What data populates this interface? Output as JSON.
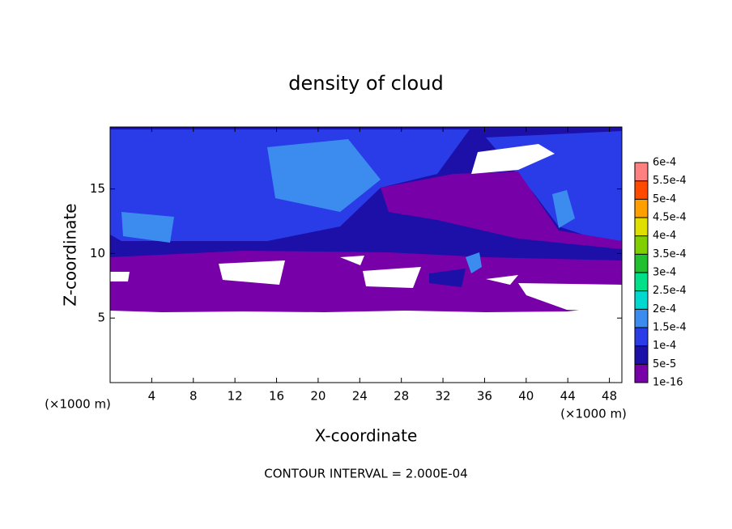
{
  "chart_data": {
    "type": "contour",
    "title": "density of cloud",
    "x_label": "X-coordinate",
    "y_label": "Z-coordinate",
    "x_unit_label": "(×1000 m)",
    "y_unit_label": "(×1000 m)",
    "footnote": "CONTOUR INTERVAL = 2.000E-04",
    "xlim": [
      0,
      49.2
    ],
    "ylim": [
      0,
      19.8
    ],
    "xticks": [
      4,
      8,
      12,
      16,
      20,
      24,
      28,
      32,
      36,
      40,
      44,
      48
    ],
    "yticks": [
      5,
      10,
      15
    ],
    "colorbar": {
      "levels": [
        {
          "value": 1e-16,
          "label": "1e-16"
        },
        {
          "value": 5e-05,
          "label": "5e-5"
        },
        {
          "value": 0.0001,
          "label": "1e-4"
        },
        {
          "value": 0.00015,
          "label": "1.5e-4"
        },
        {
          "value": 0.0002,
          "label": "2e-4"
        },
        {
          "value": 0.00025,
          "label": "2.5e-4"
        },
        {
          "value": 0.0003,
          "label": "3e-4"
        },
        {
          "value": 0.00035,
          "label": "3.5e-4"
        },
        {
          "value": 0.0004,
          "label": "4e-4"
        },
        {
          "value": 0.00045,
          "label": "4.5e-4"
        },
        {
          "value": 0.0005,
          "label": "5e-4"
        },
        {
          "value": 0.00055,
          "label": "5.5e-4"
        },
        {
          "value": 0.0006,
          "label": "6e-4"
        }
      ],
      "colors": [
        "#7800a8",
        "#1c10a8",
        "#2a3ce8",
        "#3c8cf0",
        "#00d8d0",
        "#00e088",
        "#20c030",
        "#80d000",
        "#e0e000",
        "#ffa000",
        "#ff4a00",
        "#ff8080"
      ]
    }
  }
}
